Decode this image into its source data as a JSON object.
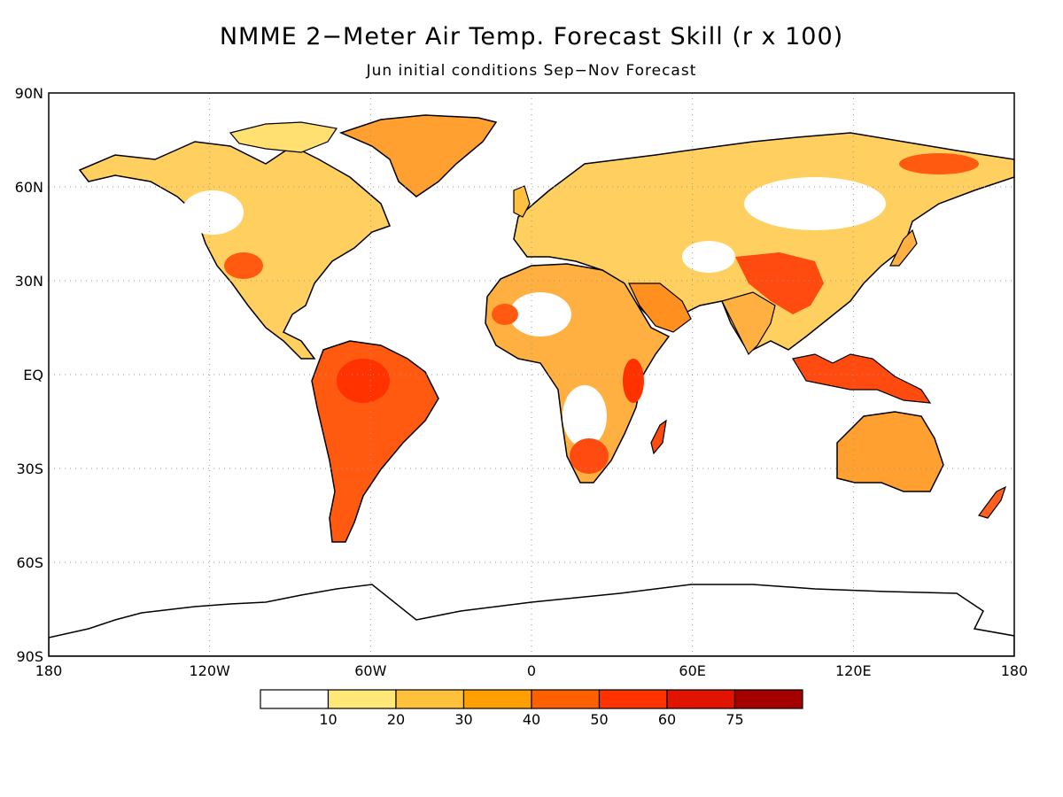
{
  "title": "NMME 2−Meter Air Temp. Forecast Skill (r x 100)",
  "subtitle": "Jun initial conditions  Sep−Nov Forecast",
  "axes": {
    "lat_labels": [
      "90N",
      "60N",
      "30N",
      "EQ",
      "30S",
      "60S",
      "90S"
    ],
    "lon_labels": [
      "180",
      "120W",
      "60W",
      "0",
      "60E",
      "120E",
      "180"
    ]
  },
  "colorbar": {
    "colors": [
      "#ffffff",
      "#ffe878",
      "#ffc03c",
      "#ffa000",
      "#ff6000",
      "#ff3200",
      "#e11400",
      "#a50000"
    ],
    "tick_labels": [
      "10",
      "20",
      "30",
      "40",
      "50",
      "60",
      "75"
    ]
  },
  "palette": {
    "land_low": "#ffffff",
    "land_mid": "#ffc03c",
    "land_high": "#ff3200",
    "coast": "#000000",
    "grid": "#999999"
  }
}
